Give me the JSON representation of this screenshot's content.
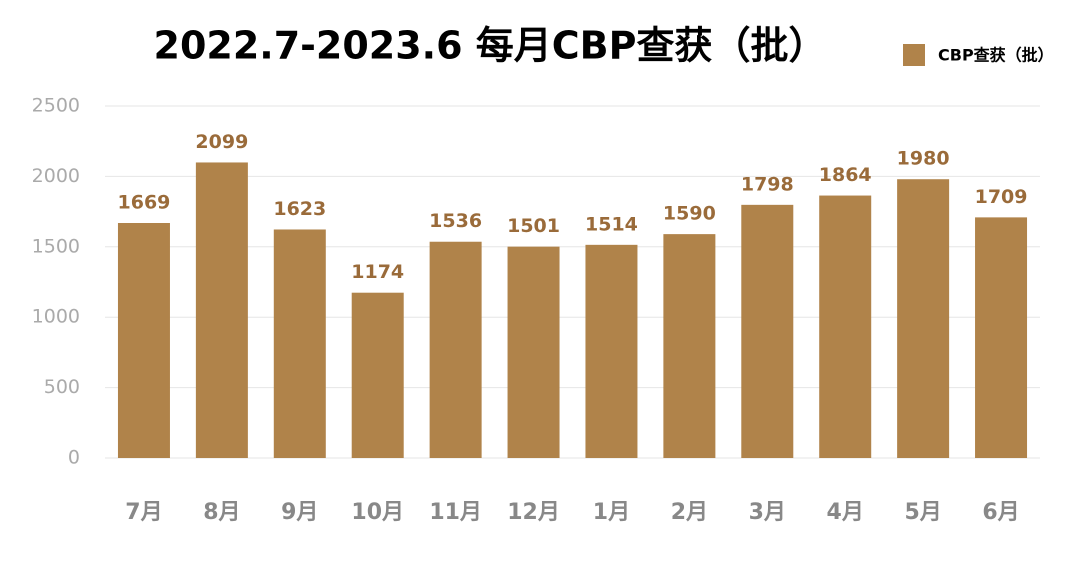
{
  "chart_data": {
    "type": "bar",
    "title": "2022.7-2023.6 每月CBP查获（批）",
    "categories": [
      "7月",
      "8月",
      "9月",
      "10月",
      "11月",
      "12月",
      "1月",
      "2月",
      "3月",
      "4月",
      "5月",
      "6月"
    ],
    "series": [
      {
        "name": "CBP查获（批）",
        "color": "#b0834a",
        "values": [
          1669,
          2099,
          1623,
          1174,
          1536,
          1501,
          1514,
          1590,
          1798,
          1864,
          1980,
          1709
        ]
      }
    ],
    "ylim": [
      0,
      2500
    ],
    "yticks": [
      0,
      500,
      1000,
      1500,
      2000,
      2500
    ],
    "grid": true,
    "legend": "top-right"
  }
}
